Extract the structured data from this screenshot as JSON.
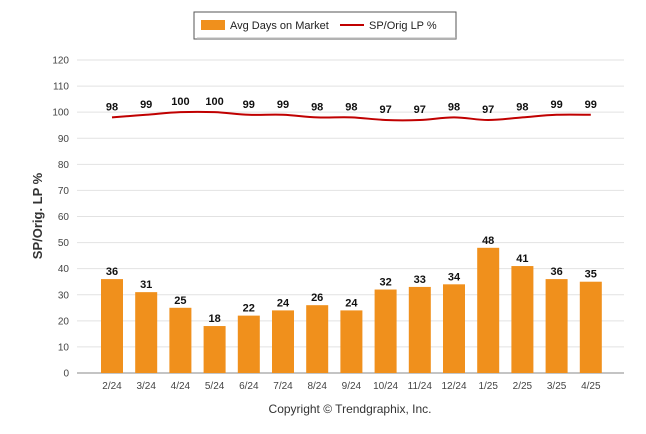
{
  "chart_data": {
    "type": "bar",
    "categories": [
      "2/24",
      "3/24",
      "4/24",
      "5/24",
      "6/24",
      "7/24",
      "8/24",
      "9/24",
      "10/24",
      "11/24",
      "12/24",
      "1/25",
      "2/25",
      "3/25",
      "4/25"
    ],
    "series": [
      {
        "name": "Avg Days on Market",
        "type": "bar",
        "color": "#f0901c",
        "values": [
          36,
          31,
          25,
          18,
          22,
          24,
          26,
          24,
          32,
          33,
          34,
          48,
          41,
          36,
          35
        ]
      },
      {
        "name": "SP/Orig LP %",
        "type": "line",
        "color": "#c00000",
        "values": [
          98,
          99,
          100,
          100,
          99,
          99,
          98,
          98,
          97,
          97,
          98,
          97,
          98,
          99,
          99
        ]
      }
    ],
    "ylabel": "SP/Orig. LP %",
    "xlabel": "",
    "ylim": [
      0,
      120
    ],
    "yticks": [
      0,
      10,
      20,
      30,
      40,
      50,
      60,
      70,
      80,
      90,
      100,
      110,
      120
    ],
    "grid": true,
    "legend_position": "top-center"
  },
  "footer": "Copyright © Trendgraphix, Inc."
}
